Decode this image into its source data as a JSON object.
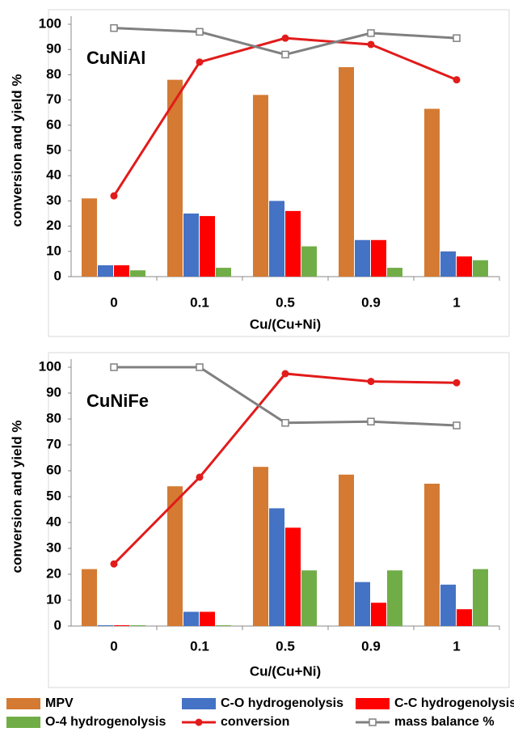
{
  "chart_data": [
    {
      "type": "bar",
      "annotation": "CuNiAl",
      "x_label": "Cu/(Cu+Ni)",
      "y_label": "conversion and yield %",
      "categories": [
        "0",
        "0.1",
        "0.5",
        "0.9",
        "1"
      ],
      "ylim": [
        0,
        100
      ],
      "yticks": [
        0,
        10,
        20,
        30,
        40,
        50,
        60,
        70,
        80,
        90,
        100
      ],
      "series": [
        {
          "name": "MPV",
          "color": "#d47a32",
          "values": [
            31,
            78,
            72,
            83,
            66.5
          ]
        },
        {
          "name": "C-O hydrogenolysis",
          "color": "#4472c4",
          "values": [
            4.5,
            25,
            30,
            14.5,
            10
          ]
        },
        {
          "name": "C-C hydrogenolysis",
          "color": "#ff0000",
          "values": [
            4.5,
            24,
            26,
            14.5,
            8
          ]
        },
        {
          "name": "O-4 hydrogenolysis",
          "color": "#70ad47",
          "values": [
            2.5,
            3.5,
            12,
            3.5,
            6.5
          ]
        },
        {
          "name": "conversion",
          "type": "line",
          "marker": "circle",
          "color": "#e21b1b",
          "values": [
            32,
            85,
            94.5,
            92,
            78
          ]
        },
        {
          "name": "mass balance %",
          "type": "line",
          "marker": "square",
          "color": "#808080",
          "values": [
            98.5,
            97,
            88,
            96.5,
            94.5
          ]
        }
      ]
    },
    {
      "type": "bar",
      "annotation": "CuNiFe",
      "x_label": "Cu/(Cu+Ni)",
      "y_label": "conversion and yield %",
      "categories": [
        "0",
        "0.1",
        "0.5",
        "0.9",
        "1"
      ],
      "ylim": [
        0,
        100
      ],
      "yticks": [
        0,
        10,
        20,
        30,
        40,
        50,
        60,
        70,
        80,
        90,
        100
      ],
      "series": [
        {
          "name": "MPV",
          "color": "#d47a32",
          "values": [
            22,
            54,
            61.5,
            58.5,
            55
          ]
        },
        {
          "name": "C-O hydrogenolysis",
          "color": "#4472c4",
          "values": [
            0.3,
            5.5,
            45.5,
            17,
            16
          ]
        },
        {
          "name": "C-C hydrogenolysis",
          "color": "#ff0000",
          "values": [
            0.3,
            5.5,
            38,
            9,
            6.5
          ]
        },
        {
          "name": "O-4 hydrogenolysis",
          "color": "#70ad47",
          "values": [
            0.3,
            0.3,
            21.5,
            21.5,
            22
          ]
        },
        {
          "name": "conversion",
          "type": "line",
          "marker": "circle",
          "color": "#e21b1b",
          "values": [
            24,
            57.5,
            97.5,
            94.5,
            94
          ]
        },
        {
          "name": "mass balance %",
          "type": "line",
          "marker": "square",
          "color": "#808080",
          "values": [
            100,
            100,
            78.5,
            79,
            77.5
          ]
        }
      ]
    }
  ]
}
